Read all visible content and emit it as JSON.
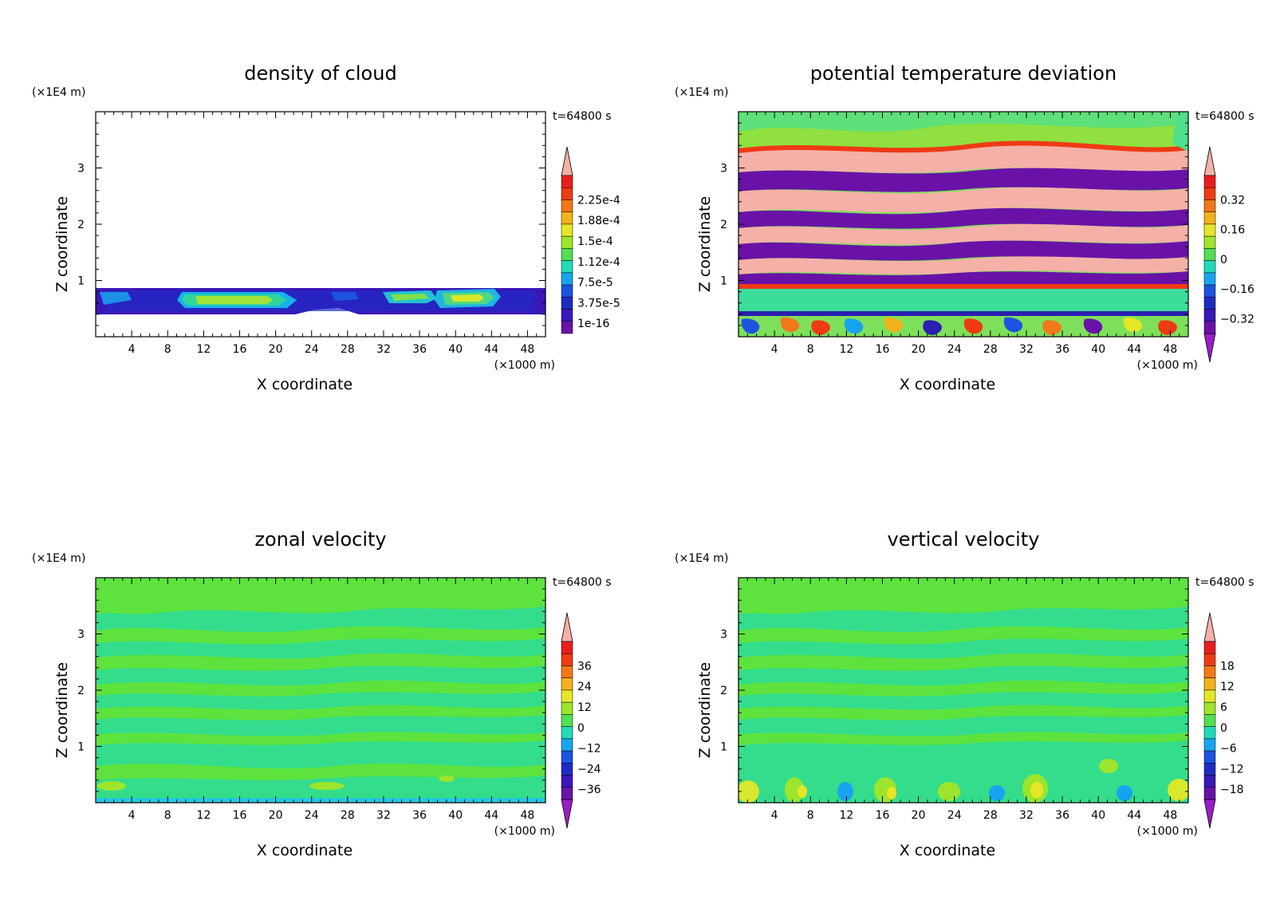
{
  "chart_data": [
    {
      "type": "heatmap",
      "title": "density of cloud",
      "xlabel": "X coordinate",
      "ylabel": "Z coordinate",
      "x_unit": "(×1000 m)",
      "y_unit": "(×1E4 m)",
      "time": "t=64800 s",
      "xticks": [
        "4",
        "8",
        "12",
        "16",
        "20",
        "24",
        "28",
        "32",
        "36",
        "40",
        "44",
        "48"
      ],
      "yticks": [
        "1",
        "2",
        "3"
      ],
      "xlim": [
        0,
        50
      ],
      "ylim": [
        0,
        4
      ],
      "colorbar": [
        "2.25e-4",
        "1.88e-4",
        "1.5e-4",
        "1.12e-4",
        "7.5e-5",
        "3.75e-5",
        "1e-16"
      ],
      "colorbar_arrow_bottom": false,
      "colors": [
        "#5b0f9c",
        "#2a1fb0",
        "#1c53e0",
        "#18a3f0",
        "#22d9b8",
        "#52e052",
        "#9de52c",
        "#e6e628",
        "#f3b21c",
        "#f27818",
        "#ef3a14",
        "#f5b0a8"
      ]
    },
    {
      "type": "heatmap",
      "title": "potential temperature deviation",
      "xlabel": "X coordinate",
      "ylabel": "Z coordinate",
      "x_unit": "(×1000 m)",
      "y_unit": "(×1E4 m)",
      "time": "t=64800 s",
      "xticks": [
        "4",
        "8",
        "12",
        "16",
        "20",
        "24",
        "28",
        "32",
        "36",
        "40",
        "44",
        "48"
      ],
      "yticks": [
        "1",
        "2",
        "3"
      ],
      "xlim": [
        0,
        50
      ],
      "ylim": [
        0,
        4
      ],
      "colorbar": [
        "0.32",
        "0.16",
        "0",
        "−0.16",
        "−0.32"
      ],
      "colorbar_arrow_bottom": true
    },
    {
      "type": "heatmap",
      "title": "zonal velocity",
      "xlabel": "X coordinate",
      "ylabel": "Z coordinate",
      "x_unit": "(×1000 m)",
      "y_unit": "(×1E4 m)",
      "time": "t=64800 s",
      "xticks": [
        "4",
        "8",
        "12",
        "16",
        "20",
        "24",
        "28",
        "32",
        "36",
        "40",
        "44",
        "48"
      ],
      "yticks": [
        "1",
        "2",
        "3"
      ],
      "xlim": [
        0,
        50
      ],
      "ylim": [
        0,
        4
      ],
      "colorbar": [
        "36",
        "24",
        "12",
        "0",
        "−12",
        "−24",
        "−36"
      ],
      "colorbar_arrow_bottom": true
    },
    {
      "type": "heatmap",
      "title": "vertical velocity",
      "xlabel": "X coordinate",
      "ylabel": "Z coordinate",
      "x_unit": "(×1000 m)",
      "y_unit": "(×1E4 m)",
      "time": "t=64800 s",
      "xticks": [
        "4",
        "8",
        "12",
        "16",
        "20",
        "24",
        "28",
        "32",
        "36",
        "40",
        "44",
        "48"
      ],
      "yticks": [
        "1",
        "2",
        "3"
      ],
      "xlim": [
        0,
        50
      ],
      "ylim": [
        0,
        4
      ],
      "colorbar": [
        "18",
        "12",
        "6",
        "0",
        "−6",
        "−12",
        "−18"
      ],
      "colorbar_arrow_bottom": true
    }
  ]
}
